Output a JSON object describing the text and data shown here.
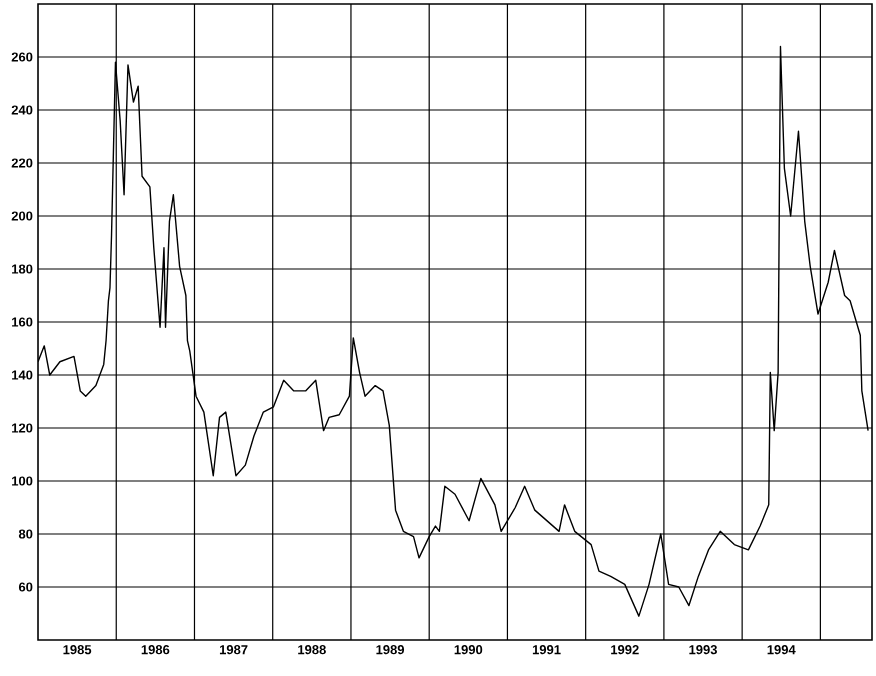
{
  "chart_data": {
    "type": "line",
    "color": "#000000",
    "grid": true,
    "marker": "none",
    "line_style": "solid",
    "x": [
      1985.0,
      1985.08,
      1985.15,
      1985.28,
      1985.46,
      1985.54,
      1985.61,
      1985.74,
      1985.84,
      1985.87,
      1985.9,
      1985.92,
      1985.94,
      1985.99,
      1986.05,
      1986.1,
      1986.15,
      1986.22,
      1986.28,
      1986.33,
      1986.43,
      1986.48,
      1986.56,
      1986.61,
      1986.63,
      1986.68,
      1986.73,
      1986.81,
      1986.89,
      1986.91,
      1986.94,
      1987.02,
      1987.12,
      1987.24,
      1987.32,
      1987.4,
      1987.53,
      1987.65,
      1987.76,
      1987.88,
      1988.01,
      1988.14,
      1988.27,
      1988.42,
      1988.55,
      1988.65,
      1988.72,
      1988.85,
      1988.98,
      1989.03,
      1989.11,
      1989.18,
      1989.31,
      1989.41,
      1989.49,
      1989.57,
      1989.67,
      1989.8,
      1989.87,
      1990.0,
      1990.08,
      1990.13,
      1990.2,
      1990.33,
      1990.51,
      1990.66,
      1990.84,
      1990.92,
      1991.1,
      1991.22,
      1991.35,
      1991.66,
      1991.73,
      1991.86,
      1992.07,
      1992.17,
      1992.32,
      1992.5,
      1992.68,
      1992.81,
      1992.96,
      1993.06,
      1993.19,
      1993.32,
      1993.44,
      1993.57,
      1993.72,
      1993.9,
      1994.08,
      1994.23,
      1994.34,
      1994.36,
      1994.41,
      1994.46,
      1994.49,
      1994.54,
      1994.62,
      1994.72,
      1994.8,
      1994.87,
      1994.97,
      1995.1,
      1995.18,
      1995.31,
      1995.38,
      1995.51,
      1995.53,
      1995.61
    ],
    "values": [
      145,
      151,
      140,
      145,
      147,
      134,
      132,
      136,
      144,
      153,
      168,
      173,
      193,
      258,
      236,
      208,
      257,
      243,
      249,
      215,
      211,
      188,
      158,
      188,
      158,
      198,
      208,
      181,
      170,
      153,
      149,
      132,
      126,
      102,
      124,
      126,
      102,
      106,
      117,
      126,
      128,
      138,
      134,
      134,
      138,
      119,
      124,
      125,
      132,
      154,
      141,
      132,
      136,
      134,
      121,
      89,
      81,
      79,
      71,
      79,
      83,
      81,
      98,
      95,
      85,
      101,
      91,
      81,
      90,
      98,
      89,
      81,
      91,
      81,
      76,
      66,
      64,
      61,
      49,
      61,
      80,
      61,
      60,
      53,
      64,
      74,
      81,
      76,
      74,
      83,
      91,
      141,
      119,
      141,
      264,
      218,
      200,
      232,
      198,
      181,
      163,
      175,
      187,
      170,
      168,
      155,
      134,
      119
    ],
    "xlim": [
      1985,
      1995.66
    ],
    "ylim": [
      40,
      280
    ],
    "xticks": [
      {
        "value": 1985.5,
        "label": "1985"
      },
      {
        "value": 1986,
        "label": null
      },
      {
        "value": 1986.5,
        "label": "1986"
      },
      {
        "value": 1987,
        "label": null
      },
      {
        "value": 1987.5,
        "label": "1987"
      },
      {
        "value": 1988,
        "label": null
      },
      {
        "value": 1988.5,
        "label": "1988"
      },
      {
        "value": 1989,
        "label": null
      },
      {
        "value": 1989.5,
        "label": "1989"
      },
      {
        "value": 1990,
        "label": null
      },
      {
        "value": 1990.5,
        "label": "1990"
      },
      {
        "value": 1991,
        "label": null
      },
      {
        "value": 1991.5,
        "label": "1991"
      },
      {
        "value": 1992,
        "label": null
      },
      {
        "value": 1992.5,
        "label": "1992"
      },
      {
        "value": 1993,
        "label": null
      },
      {
        "value": 1993.5,
        "label": "1993"
      },
      {
        "value": 1994,
        "label": null
      },
      {
        "value": 1994.5,
        "label": "1994"
      },
      {
        "value": 1995,
        "label": null
      }
    ],
    "yticks": [
      60,
      80,
      100,
      120,
      140,
      160,
      180,
      200,
      220,
      240,
      260
    ]
  }
}
